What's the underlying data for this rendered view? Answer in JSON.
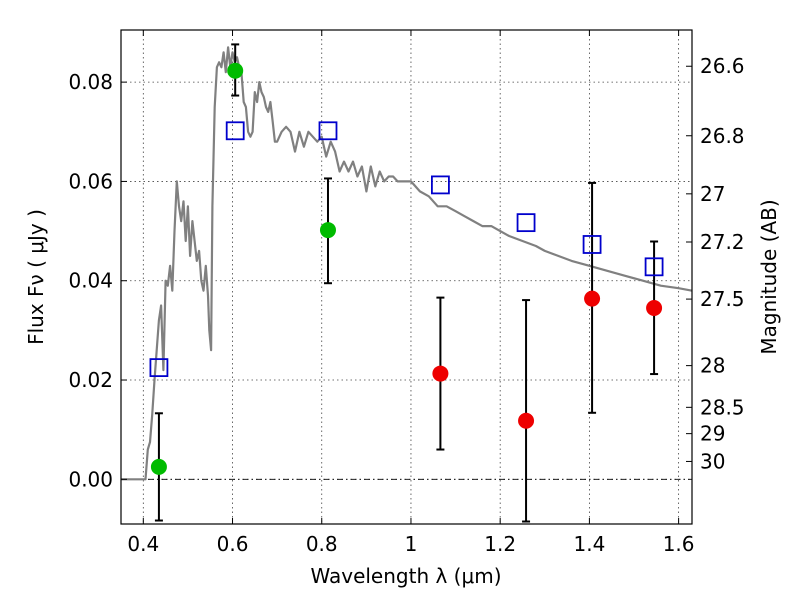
{
  "chart_data": {
    "type": "scatter",
    "xlabel": "Wavelength  λ (μm)",
    "ylabel": "Flux  Fν  ( μJy )",
    "y2label": "Magnitude (AB)",
    "xlim": [
      0.35,
      1.63
    ],
    "ylim": [
      -0.009,
      0.0905
    ],
    "x_ticks": [
      0.4,
      0.6,
      0.8,
      1.0,
      1.2,
      1.4,
      1.6
    ],
    "x_tick_labels": [
      "0.4",
      "0.6",
      "0.8",
      "1",
      "1.2",
      "1.4",
      "1.6"
    ],
    "y_ticks": [
      0.0,
      0.02,
      0.04,
      0.06,
      0.08
    ],
    "y_tick_labels": [
      "0.00",
      "0.02",
      "0.04",
      "0.06",
      "0.08"
    ],
    "y2_ticks": [
      {
        "label": "26.6",
        "flux": 0.0832
      },
      {
        "label": "26.8",
        "flux": 0.0692
      },
      {
        "label": "27",
        "flux": 0.0575
      },
      {
        "label": "27.2",
        "flux": 0.0478
      },
      {
        "label": "27.5",
        "flux": 0.0363
      },
      {
        "label": "28",
        "flux": 0.0229
      },
      {
        "label": "28.5",
        "flux": 0.0145
      },
      {
        "label": "29",
        "flux": 0.0092
      },
      {
        "label": "30",
        "flux": 0.0036
      }
    ],
    "grid": true,
    "zero_line": true,
    "colors": {
      "model": "#808080",
      "detection": "#00bb00",
      "nondetection": "#ee0000",
      "model_flux": "#0000cc",
      "errorbar": "#000000"
    },
    "model_sed": {
      "x": [
        0.35,
        0.405,
        0.41,
        0.415,
        0.42,
        0.425,
        0.43,
        0.435,
        0.44,
        0.445,
        0.45,
        0.455,
        0.46,
        0.465,
        0.47,
        0.475,
        0.48,
        0.485,
        0.49,
        0.495,
        0.5,
        0.505,
        0.51,
        0.515,
        0.52,
        0.525,
        0.53,
        0.535,
        0.54,
        0.545,
        0.548,
        0.552,
        0.555,
        0.56,
        0.565,
        0.57,
        0.575,
        0.58,
        0.585,
        0.59,
        0.595,
        0.6,
        0.605,
        0.61,
        0.615,
        0.62,
        0.625,
        0.63,
        0.635,
        0.64,
        0.645,
        0.65,
        0.655,
        0.66,
        0.665,
        0.67,
        0.675,
        0.68,
        0.685,
        0.69,
        0.695,
        0.7,
        0.71,
        0.72,
        0.73,
        0.74,
        0.75,
        0.76,
        0.77,
        0.78,
        0.79,
        0.8,
        0.81,
        0.82,
        0.83,
        0.84,
        0.85,
        0.86,
        0.87,
        0.88,
        0.89,
        0.9,
        0.91,
        0.92,
        0.93,
        0.94,
        0.95,
        0.96,
        0.97,
        0.98,
        0.99,
        1.0,
        1.02,
        1.04,
        1.06,
        1.08,
        1.1,
        1.12,
        1.14,
        1.16,
        1.18,
        1.2,
        1.22,
        1.25,
        1.28,
        1.3,
        1.33,
        1.36,
        1.4,
        1.44,
        1.48,
        1.52,
        1.56,
        1.6,
        1.63
      ],
      "y": [
        0.0,
        0.0,
        0.006,
        0.0075,
        0.013,
        0.02,
        0.026,
        0.032,
        0.035,
        0.022,
        0.04,
        0.039,
        0.043,
        0.038,
        0.05,
        0.06,
        0.055,
        0.052,
        0.056,
        0.048,
        0.055,
        0.045,
        0.052,
        0.048,
        0.044,
        0.046,
        0.04,
        0.038,
        0.043,
        0.037,
        0.03,
        0.026,
        0.055,
        0.075,
        0.083,
        0.084,
        0.083,
        0.086,
        0.082,
        0.087,
        0.083,
        0.086,
        0.084,
        0.085,
        0.083,
        0.082,
        0.076,
        0.075,
        0.07,
        0.069,
        0.07,
        0.078,
        0.076,
        0.08,
        0.078,
        0.077,
        0.075,
        0.074,
        0.076,
        0.072,
        0.068,
        0.068,
        0.07,
        0.071,
        0.07,
        0.066,
        0.07,
        0.067,
        0.07,
        0.069,
        0.068,
        0.069,
        0.065,
        0.068,
        0.066,
        0.062,
        0.064,
        0.062,
        0.064,
        0.061,
        0.063,
        0.058,
        0.063,
        0.059,
        0.062,
        0.06,
        0.061,
        0.061,
        0.06,
        0.06,
        0.06,
        0.06,
        0.058,
        0.057,
        0.055,
        0.055,
        0.054,
        0.053,
        0.052,
        0.051,
        0.051,
        0.05,
        0.049,
        0.048,
        0.047,
        0.046,
        0.045,
        0.044,
        0.043,
        0.042,
        0.041,
        0.04,
        0.039,
        0.0385,
        0.038
      ]
    },
    "observed": [
      {
        "x": 0.435,
        "y": 0.0025,
        "err_low": -0.0083,
        "err_high": 0.0133,
        "class": "detection"
      },
      {
        "x": 0.606,
        "y": 0.0823,
        "err_low": 0.0773,
        "err_high": 0.0876,
        "class": "detection"
      },
      {
        "x": 0.814,
        "y": 0.0502,
        "err_low": 0.0395,
        "err_high": 0.0606,
        "class": "detection"
      },
      {
        "x": 1.066,
        "y": 0.0213,
        "err_low": 0.006,
        "err_high": 0.0366,
        "class": "nondetection"
      },
      {
        "x": 1.258,
        "y": 0.0118,
        "err_low": -0.0085,
        "err_high": 0.0361,
        "class": "nondetection"
      },
      {
        "x": 1.406,
        "y": 0.0364,
        "err_low": 0.0134,
        "err_high": 0.0597,
        "class": "nondetection"
      },
      {
        "x": 1.545,
        "y": 0.0345,
        "err_low": 0.0212,
        "err_high": 0.0479,
        "class": "nondetection"
      }
    ],
    "model_fluxes": [
      {
        "x": 0.435,
        "y": 0.0225
      },
      {
        "x": 0.606,
        "y": 0.0702
      },
      {
        "x": 0.814,
        "y": 0.0702
      },
      {
        "x": 1.066,
        "y": 0.0593
      },
      {
        "x": 1.258,
        "y": 0.0517
      },
      {
        "x": 1.406,
        "y": 0.0473
      },
      {
        "x": 1.545,
        "y": 0.0428
      }
    ]
  }
}
